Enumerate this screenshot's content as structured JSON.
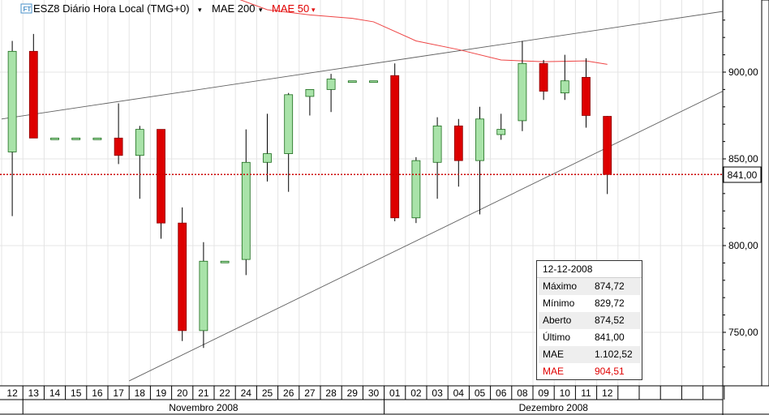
{
  "header": {
    "ft_badge": "FT",
    "symbol_title": "ESZ8 Diário Hora Local (TMG+0)",
    "indicator_1": "MAE 200",
    "indicator_2": "MAE 50",
    "dropdown_glyph": "▾"
  },
  "colors": {
    "up": "#a9e3a9",
    "down": "#dd0000",
    "mae50": "#ee4444",
    "trendline": "#606060",
    "last_price": "#cc0000",
    "grid": "#e4e4e4"
  },
  "chart_data": {
    "type": "candlestick",
    "title": "ESZ8 Diário Hora Local (TMG+0)",
    "ylim": [
      720,
      940
    ],
    "y_ticks": [
      "750,00",
      "800,00",
      "850,00",
      "900,00"
    ],
    "y_tick_values": [
      750,
      800,
      850,
      900
    ],
    "last_price": 841.0,
    "last_price_label": "841,00",
    "x_labels": [
      "12",
      "13",
      "14",
      "15",
      "16",
      "17",
      "18",
      "19",
      "20",
      "21",
      "22",
      "24",
      "25",
      "26",
      "27",
      "28",
      "29",
      "30",
      "01",
      "02",
      "03",
      "04",
      "05",
      "06",
      "08",
      "09",
      "10",
      "11",
      "12",
      "",
      "",
      "",
      "",
      ""
    ],
    "months": [
      {
        "label": "Novembro 2008",
        "start": 1,
        "end": 17
      },
      {
        "label": "Dezembro 2008",
        "start": 18,
        "end": 33
      }
    ],
    "candles": [
      {
        "date": "12",
        "o": 854,
        "h": 918,
        "l": 817,
        "c": 912
      },
      {
        "date": "13",
        "o": 912,
        "h": 922,
        "l": 862,
        "c": 862
      },
      {
        "date": "14",
        "o": 862,
        "h": 862,
        "l": 862,
        "c": 862
      },
      {
        "date": "15",
        "o": 862,
        "h": 862,
        "l": 862,
        "c": 862
      },
      {
        "date": "16",
        "o": 862,
        "h": 862,
        "l": 862,
        "c": 862
      },
      {
        "date": "17",
        "o": 862,
        "h": 882,
        "l": 847,
        "c": 852
      },
      {
        "date": "18",
        "o": 852,
        "h": 869,
        "l": 827,
        "c": 867
      },
      {
        "date": "19",
        "o": 867,
        "h": 867,
        "l": 804,
        "c": 813
      },
      {
        "date": "20",
        "o": 813,
        "h": 822,
        "l": 745,
        "c": 751
      },
      {
        "date": "21",
        "o": 751,
        "h": 802,
        "l": 741,
        "c": 791
      },
      {
        "date": "22",
        "o": 791,
        "h": 791,
        "l": 791,
        "c": 791
      },
      {
        "date": "24",
        "o": 792,
        "h": 867,
        "l": 783,
        "c": 848
      },
      {
        "date": "25",
        "o": 848,
        "h": 876,
        "l": 837,
        "c": 853
      },
      {
        "date": "26",
        "o": 853,
        "h": 888,
        "l": 831,
        "c": 887
      },
      {
        "date": "27",
        "o": 886,
        "h": 890,
        "l": 875,
        "c": 890
      },
      {
        "date": "28",
        "o": 890,
        "h": 899,
        "l": 877,
        "c": 896
      },
      {
        "date": "29",
        "o": 895,
        "h": 895,
        "l": 895,
        "c": 895
      },
      {
        "date": "30",
        "o": 895,
        "h": 895,
        "l": 895,
        "c": 895
      },
      {
        "date": "01",
        "o": 898,
        "h": 905,
        "l": 814,
        "c": 816
      },
      {
        "date": "02",
        "o": 816,
        "h": 851,
        "l": 813,
        "c": 849
      },
      {
        "date": "03",
        "o": 848,
        "h": 874,
        "l": 827,
        "c": 869
      },
      {
        "date": "04",
        "o": 869,
        "h": 873,
        "l": 834,
        "c": 849
      },
      {
        "date": "05",
        "o": 849,
        "h": 880,
        "l": 818,
        "c": 873
      },
      {
        "date": "06",
        "o": 864,
        "h": 876,
        "l": 861,
        "c": 867
      },
      {
        "date": "08",
        "o": 872,
        "h": 918,
        "l": 866,
        "c": 905
      },
      {
        "date": "09",
        "o": 905,
        "h": 907,
        "l": 884,
        "c": 889
      },
      {
        "date": "10",
        "o": 888,
        "h": 910,
        "l": 884,
        "c": 895
      },
      {
        "date": "11",
        "o": 897,
        "h": 908,
        "l": 868,
        "c": 875
      },
      {
        "date": "12",
        "o": 874.52,
        "h": 874.72,
        "l": 829.72,
        "c": 841.0
      }
    ],
    "mae50": [
      {
        "idx": 10,
        "v": 945
      },
      {
        "idx": 12,
        "v": 936
      },
      {
        "idx": 14,
        "v": 933
      },
      {
        "idx": 16,
        "v": 931
      },
      {
        "idx": 17,
        "v": 929
      },
      {
        "idx": 19,
        "v": 918
      },
      {
        "idx": 21,
        "v": 913
      },
      {
        "idx": 23,
        "v": 907
      },
      {
        "idx": 25,
        "v": 906
      },
      {
        "idx": 27,
        "v": 906.5
      },
      {
        "idx": 28,
        "v": 904.51
      }
    ],
    "trendlines": [
      {
        "x1": -0.5,
        "y1": 873,
        "x2": 33.8,
        "y2": 935
      },
      {
        "x1": 5.5,
        "y1": 722,
        "x2": 33.8,
        "y2": 889
      }
    ]
  },
  "tooltip": {
    "date": "12-12-2008",
    "rows": [
      {
        "label": "Máximo",
        "value": "874,72"
      },
      {
        "label": "Mínimo",
        "value": "829,72"
      },
      {
        "label": "Aberto",
        "value": "874,52"
      },
      {
        "label": "Último",
        "value": "841,00"
      },
      {
        "label": "MAE",
        "value": "1.102,52"
      },
      {
        "label": "MAE",
        "value": "904,51"
      }
    ]
  }
}
